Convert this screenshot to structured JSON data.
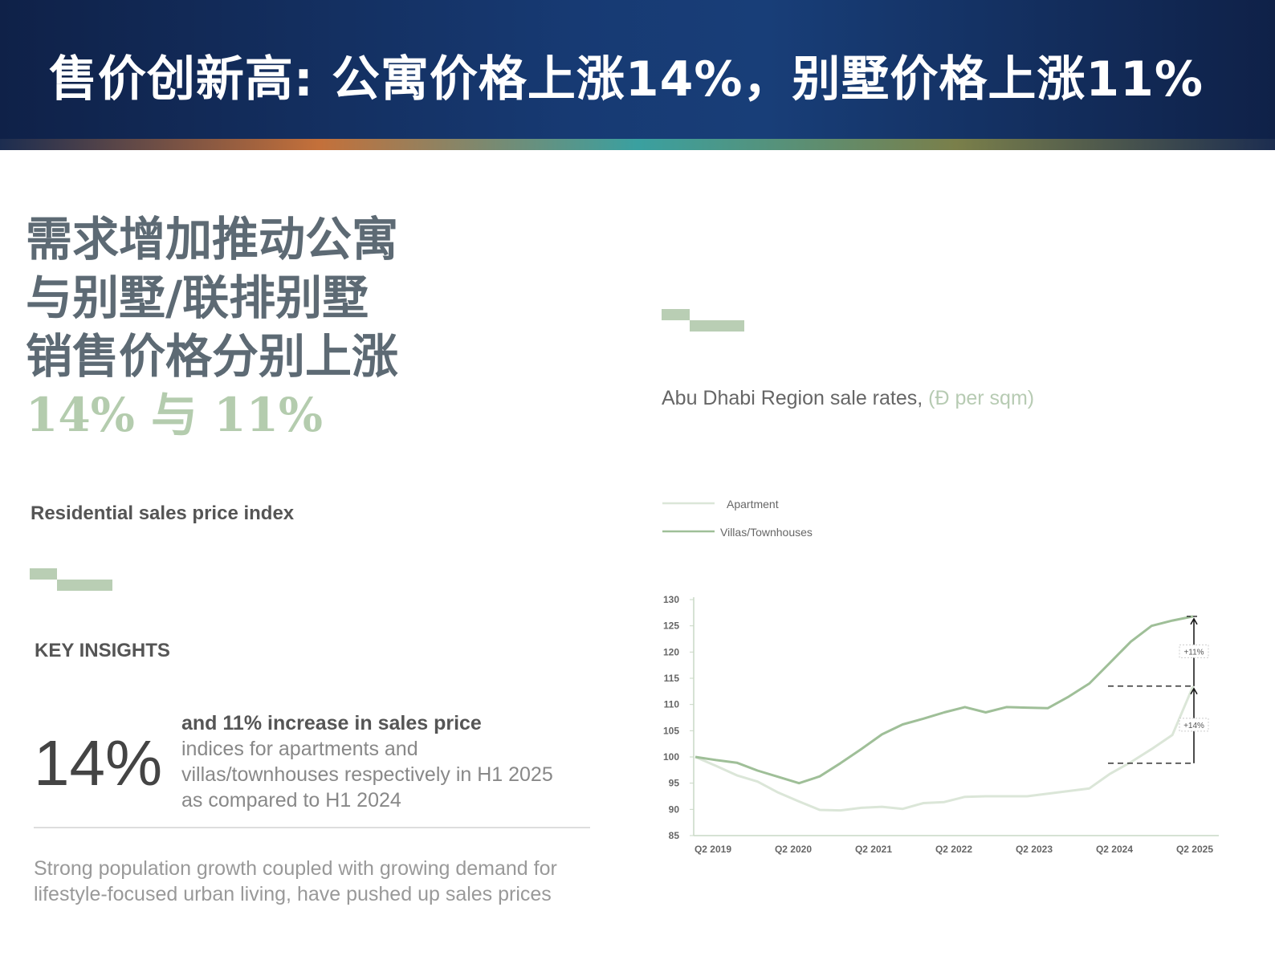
{
  "banner": {
    "title": "售价创新高: 公寓价格上涨14%，别墅价格上涨11%"
  },
  "headline": {
    "lines": [
      "需求增加推动公寓",
      "与别墅/联排别墅",
      "销售价格分别上涨"
    ],
    "highlight": "14% 与 11%"
  },
  "left": {
    "section_title": "Residential sales price index",
    "key_insights": "KEY INSIGHTS",
    "big_stat": "14%",
    "insight_bold": "and 11% increase in sales price",
    "insight_lines": [
      "indices for apartments and",
      "villas/townhouses respectively in H1 2025",
      "as compared to H1 2024"
    ],
    "paragraph": [
      "Strong population growth coupled with growing demand for",
      "lifestyle-focused urban living, have pushed up sales prices"
    ]
  },
  "colors": {
    "apartment": "#dbe6d8",
    "villas": "#9fbf98",
    "accent": "#b4ccae"
  },
  "chart_data": {
    "type": "line",
    "title": "Abu Dhabi Region sale rates,",
    "title_unit": "(Đ per sqm)",
    "ylim": [
      85,
      130
    ],
    "yticks": [
      85,
      90,
      95,
      100,
      105,
      110,
      115,
      120,
      125,
      130
    ],
    "xtick_labels": [
      "Q2 2019",
      "Q2 2020",
      "Q2 2021",
      "Q2 2022",
      "Q2 2023",
      "Q2 2024",
      "Q2 2025"
    ],
    "legend": "top-left",
    "grid": false,
    "series": [
      {
        "name": "Apartment",
        "values": [
          100,
          98.3,
          96.5,
          95.3,
          93.2,
          91.5,
          89.9,
          89.8,
          90.3,
          90.5,
          90.1,
          91.2,
          91.4,
          92.4,
          92.5,
          92.5,
          92.5,
          93,
          93.5,
          94,
          96.8,
          99,
          101.5,
          104.2,
          113.5
        ]
      },
      {
        "name": "Villas/Townhouses",
        "values": [
          100,
          99.4,
          98.9,
          97.4,
          96.2,
          95,
          96.3,
          98.8,
          101.5,
          104.3,
          106.2,
          107.3,
          108.5,
          109.5,
          108.5,
          109.5,
          109.4,
          109.3,
          111.5,
          114,
          118,
          122,
          125,
          126,
          126.8
        ]
      }
    ],
    "annotations": [
      {
        "label": "+11%",
        "from": 113.5,
        "to": 126.8
      },
      {
        "label": "+14%",
        "from": 98.8,
        "to": 113.5
      }
    ]
  }
}
